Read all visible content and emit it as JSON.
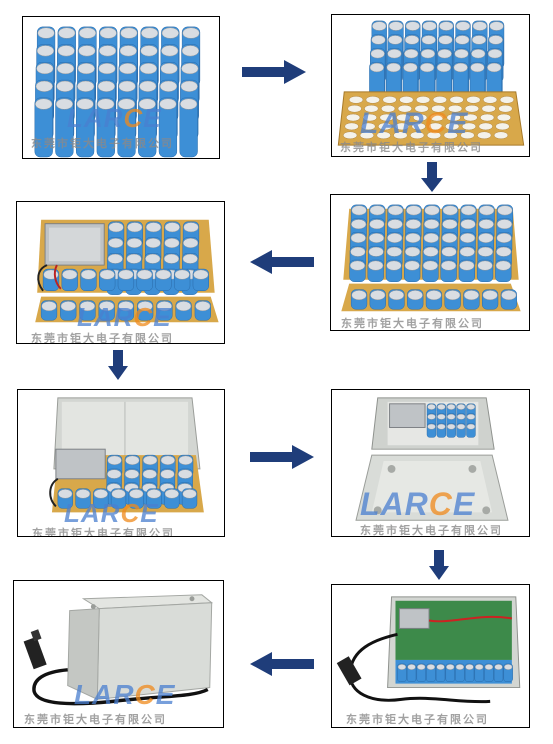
{
  "watermark": {
    "logo_pre": "LAR",
    "logo_mid": "C",
    "logo_post": "E",
    "company": "东莞市钜大电子有限公司"
  },
  "colors": {
    "cell_blue": "#3d8fd6",
    "cell_top": "#d9dde2",
    "holder": "#d8a84a",
    "arrow": "#1f3d7a",
    "case": "#d9dcd8"
  },
  "steps": [
    {
      "id": 1,
      "content": "cell-array"
    },
    {
      "id": 2,
      "content": "cells-with-holder"
    },
    {
      "id": 3,
      "content": "cells-in-holders"
    },
    {
      "id": 4,
      "content": "pack-with-bms"
    },
    {
      "id": 5,
      "content": "pack-in-case"
    },
    {
      "id": 6,
      "content": "open-case-top-view"
    },
    {
      "id": 7,
      "content": "wired-pack-in-case"
    },
    {
      "id": 8,
      "content": "sealed-case-with-cable"
    }
  ],
  "arrows": [
    "right",
    "down",
    "left",
    "down",
    "right",
    "down",
    "left"
  ]
}
